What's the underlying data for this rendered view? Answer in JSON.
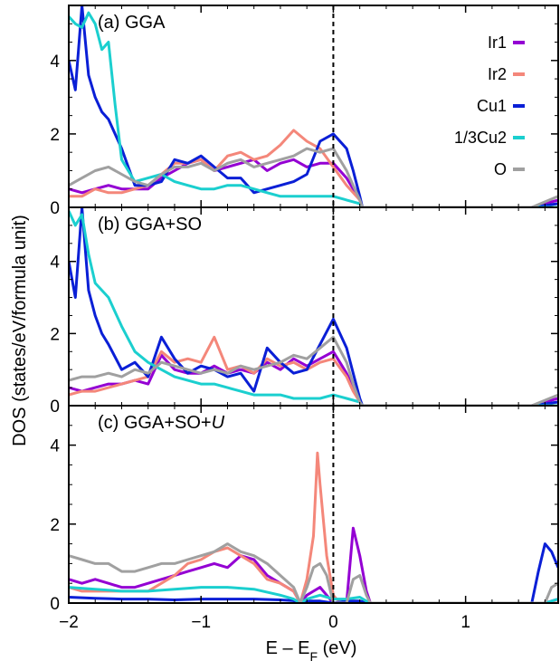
{
  "chart_data": {
    "type": "line",
    "xlabel": "E – E",
    "xlabel_sub": "F",
    "xlabel_unit": " (eV)",
    "ylabel": "DOS (states/eV/formula unit)",
    "xlim": [
      -2,
      1.7
    ],
    "x_ticks": [
      -2,
      -1,
      0,
      1
    ],
    "x_tick_labels": [
      "−2",
      "−1",
      "0",
      "1"
    ],
    "fermi_level_line": 0,
    "legend": {
      "placement": "top-right of panel (a)",
      "entries": [
        "Ir1",
        "Ir2",
        "Cu1",
        "1/3Cu2",
        "O"
      ]
    },
    "series_colors": {
      "Ir1": "#9400d3",
      "Ir2": "#f4877a",
      "Cu1": "#0a1fd6",
      "1/3Cu2": "#1bcfcf",
      "O": "#a0a0a0"
    },
    "panels": [
      {
        "label": "(a) GGA",
        "ylim": [
          0,
          5.5
        ],
        "y_ticks": [
          0,
          2,
          4
        ],
        "series": [
          {
            "name": "Ir1",
            "x": [
              -2,
              -1.9,
              -1.8,
              -1.7,
              -1.6,
              -1.5,
              -1.4,
              -1.3,
              -1.2,
              -1.1,
              -1.0,
              -0.9,
              -0.8,
              -0.7,
              -0.6,
              -0.5,
              -0.4,
              -0.3,
              -0.2,
              -0.1,
              0.0,
              0.1,
              0.15,
              0.2,
              0.22,
              1.5,
              1.7
            ],
            "y": [
              0.5,
              0.4,
              0.5,
              0.6,
              0.5,
              0.5,
              0.5,
              0.8,
              1.0,
              1.2,
              1.3,
              1.0,
              1.1,
              1.2,
              1.3,
              1.0,
              1.2,
              1.3,
              1.1,
              1.2,
              1.2,
              0.8,
              0.5,
              0.2,
              0.0,
              0.0,
              0.2
            ]
          },
          {
            "name": "Ir2",
            "x": [
              -2,
              -1.9,
              -1.8,
              -1.7,
              -1.6,
              -1.5,
              -1.4,
              -1.3,
              -1.2,
              -1.1,
              -1.0,
              -0.9,
              -0.8,
              -0.7,
              -0.6,
              -0.5,
              -0.4,
              -0.3,
              -0.2,
              -0.1,
              0.0,
              0.1,
              0.15,
              0.2,
              0.22,
              1.5,
              1.7
            ],
            "y": [
              0.3,
              0.3,
              0.5,
              0.4,
              0.4,
              0.5,
              0.6,
              0.9,
              1.2,
              1.2,
              1.3,
              1.0,
              1.4,
              1.5,
              1.3,
              1.4,
              1.7,
              2.1,
              1.8,
              1.6,
              1.1,
              0.6,
              0.4,
              0.2,
              0.0,
              0.0,
              0.1
            ]
          },
          {
            "name": "Cu1",
            "x": [
              -2,
              -1.95,
              -1.9,
              -1.85,
              -1.8,
              -1.75,
              -1.7,
              -1.6,
              -1.5,
              -1.4,
              -1.3,
              -1.2,
              -1.1,
              -1.0,
              -0.9,
              -0.8,
              -0.7,
              -0.6,
              -0.5,
              -0.4,
              -0.3,
              -0.2,
              -0.1,
              0.0,
              0.1,
              0.15,
              0.2,
              0.22,
              1.5,
              1.7
            ],
            "y": [
              4.0,
              3.2,
              5.5,
              3.6,
              3.0,
              2.6,
              2.4,
              1.6,
              0.6,
              0.6,
              0.7,
              1.3,
              1.2,
              1.4,
              1.1,
              0.8,
              0.8,
              0.4,
              0.5,
              0.6,
              0.7,
              0.9,
              1.8,
              2.0,
              1.6,
              1.0,
              0.3,
              0.0,
              0.0,
              0.1
            ]
          },
          {
            "name": "1/3Cu2",
            "x": [
              -2,
              -1.95,
              -1.9,
              -1.85,
              -1.8,
              -1.75,
              -1.7,
              -1.65,
              -1.6,
              -1.5,
              -1.4,
              -1.3,
              -1.2,
              -1.1,
              -1.0,
              -0.9,
              -0.8,
              -0.7,
              -0.6,
              -0.5,
              -0.4,
              -0.3,
              -0.2,
              -0.1,
              0.0,
              0.1,
              0.2,
              0.22,
              1.5,
              1.7
            ],
            "y": [
              5.2,
              5.0,
              4.9,
              5.3,
              5.0,
              4.3,
              4.5,
              2.8,
              1.3,
              0.7,
              0.8,
              0.9,
              0.7,
              0.6,
              0.5,
              0.5,
              0.6,
              0.6,
              0.5,
              0.4,
              0.3,
              0.3,
              0.3,
              0.3,
              0.3,
              0.2,
              0.1,
              0.0,
              0.0,
              0.0
            ]
          },
          {
            "name": "O",
            "x": [
              -2,
              -1.9,
              -1.8,
              -1.7,
              -1.6,
              -1.5,
              -1.4,
              -1.3,
              -1.2,
              -1.1,
              -1.0,
              -0.9,
              -0.8,
              -0.7,
              -0.6,
              -0.5,
              -0.4,
              -0.3,
              -0.2,
              -0.1,
              0.0,
              0.1,
              0.15,
              0.2,
              0.22,
              1.5,
              1.7
            ],
            "y": [
              0.6,
              0.8,
              1.0,
              1.1,
              0.9,
              0.7,
              0.6,
              0.9,
              1.1,
              1.1,
              1.2,
              1.0,
              1.2,
              1.3,
              1.1,
              1.2,
              1.3,
              1.4,
              1.6,
              1.5,
              1.6,
              1.0,
              0.6,
              0.2,
              0.0,
              0.0,
              0.3
            ]
          }
        ]
      },
      {
        "label": "(b) GGA+SO",
        "ylim": [
          0,
          5.5
        ],
        "y_ticks": [
          0,
          2,
          4
        ],
        "series": [
          {
            "name": "Ir1",
            "x": [
              -2,
              -1.9,
              -1.8,
              -1.7,
              -1.6,
              -1.5,
              -1.4,
              -1.3,
              -1.2,
              -1.1,
              -1.0,
              -0.9,
              -0.8,
              -0.7,
              -0.6,
              -0.5,
              -0.4,
              -0.3,
              -0.2,
              -0.1,
              0.0,
              0.1,
              0.15,
              0.2,
              0.22,
              1.5,
              1.7
            ],
            "y": [
              0.5,
              0.4,
              0.5,
              0.6,
              0.6,
              0.7,
              0.6,
              1.4,
              1.0,
              0.9,
              0.9,
              1.1,
              0.9,
              1.0,
              0.9,
              1.2,
              1.0,
              1.3,
              1.1,
              1.3,
              1.5,
              0.9,
              0.5,
              0.1,
              0.0,
              0.0,
              0.2
            ]
          },
          {
            "name": "Ir2",
            "x": [
              -2,
              -1.9,
              -1.8,
              -1.7,
              -1.6,
              -1.5,
              -1.4,
              -1.3,
              -1.2,
              -1.1,
              -1.0,
              -0.9,
              -0.8,
              -0.7,
              -0.6,
              -0.5,
              -0.4,
              -0.3,
              -0.2,
              -0.1,
              0.0,
              0.1,
              0.15,
              0.2,
              0.22,
              1.5,
              1.7
            ],
            "y": [
              0.3,
              0.4,
              0.4,
              0.5,
              0.6,
              0.7,
              0.8,
              1.5,
              1.2,
              1.3,
              1.2,
              1.9,
              1.0,
              1.1,
              0.9,
              1.3,
              1.1,
              1.2,
              1.0,
              1.2,
              1.3,
              0.8,
              0.4,
              0.1,
              0.0,
              0.0,
              0.1
            ]
          },
          {
            "name": "Cu1",
            "x": [
              -2,
              -1.95,
              -1.9,
              -1.85,
              -1.8,
              -1.75,
              -1.7,
              -1.6,
              -1.5,
              -1.4,
              -1.3,
              -1.2,
              -1.1,
              -1.0,
              -0.9,
              -0.8,
              -0.7,
              -0.6,
              -0.5,
              -0.4,
              -0.3,
              -0.2,
              -0.1,
              0.0,
              0.1,
              0.15,
              0.2,
              0.22,
              1.5,
              1.7
            ],
            "y": [
              4.0,
              3.0,
              5.5,
              3.2,
              2.5,
              2.0,
              1.7,
              1.0,
              1.2,
              0.8,
              1.9,
              1.3,
              0.9,
              1.1,
              1.0,
              0.8,
              0.9,
              0.4,
              1.6,
              1.2,
              0.9,
              1.0,
              1.7,
              2.4,
              1.6,
              0.9,
              0.2,
              0.0,
              0.0,
              0.1
            ]
          },
          {
            "name": "1/3Cu2",
            "x": [
              -2,
              -1.95,
              -1.9,
              -1.85,
              -1.8,
              -1.75,
              -1.7,
              -1.65,
              -1.6,
              -1.5,
              -1.4,
              -1.3,
              -1.2,
              -1.1,
              -1.0,
              -0.9,
              -0.8,
              -0.7,
              -0.6,
              -0.5,
              -0.4,
              -0.3,
              -0.2,
              -0.1,
              0.0,
              0.1,
              0.2,
              0.22,
              1.5,
              1.7
            ],
            "y": [
              5.4,
              5.0,
              5.3,
              4.2,
              3.4,
              3.2,
              3.0,
              2.6,
              2.2,
              1.5,
              1.2,
              1.0,
              0.8,
              0.7,
              0.6,
              0.6,
              0.5,
              0.4,
              0.3,
              0.3,
              0.3,
              0.2,
              0.2,
              0.2,
              0.3,
              0.2,
              0.1,
              0.0,
              0.0,
              0.0
            ]
          },
          {
            "name": "O",
            "x": [
              -2,
              -1.9,
              -1.8,
              -1.7,
              -1.6,
              -1.5,
              -1.4,
              -1.3,
              -1.2,
              -1.1,
              -1.0,
              -0.9,
              -0.8,
              -0.7,
              -0.6,
              -0.5,
              -0.4,
              -0.3,
              -0.2,
              -0.1,
              0.0,
              0.1,
              0.15,
              0.2,
              0.22,
              1.5,
              1.7
            ],
            "y": [
              0.7,
              0.8,
              0.8,
              0.9,
              0.8,
              1.0,
              0.9,
              1.2,
              1.1,
              1.0,
              0.9,
              1.0,
              0.9,
              1.1,
              1.0,
              1.1,
              1.2,
              1.4,
              1.3,
              1.6,
              1.9,
              1.2,
              0.6,
              0.1,
              0.0,
              0.0,
              0.3
            ]
          }
        ]
      },
      {
        "label": "(c) GGA+SO+",
        "label_italic": "U",
        "ylim": [
          0,
          5.0
        ],
        "y_ticks": [
          0,
          2,
          4
        ],
        "series": [
          {
            "name": "Ir1",
            "x": [
              -2,
              -1.9,
              -1.8,
              -1.7,
              -1.6,
              -1.5,
              -1.4,
              -1.3,
              -1.2,
              -1.1,
              -1.0,
              -0.9,
              -0.8,
              -0.7,
              -0.6,
              -0.5,
              -0.4,
              -0.3,
              -0.25,
              -0.2,
              -0.15,
              -0.1,
              -0.05,
              0.0,
              0.05,
              0.1,
              0.15,
              0.2,
              0.25,
              0.28,
              1.6,
              1.7
            ],
            "y": [
              0.6,
              0.5,
              0.6,
              0.5,
              0.4,
              0.4,
              0.5,
              0.6,
              0.7,
              0.8,
              0.9,
              1.0,
              0.9,
              1.2,
              1.1,
              0.7,
              0.5,
              0.3,
              0.0,
              0.2,
              0.3,
              0.4,
              0.2,
              0.0,
              0.0,
              0.0,
              1.9,
              1.2,
              0.3,
              0.0,
              0.0,
              0.1
            ]
          },
          {
            "name": "Ir2",
            "x": [
              -2,
              -1.9,
              -1.8,
              -1.7,
              -1.6,
              -1.5,
              -1.4,
              -1.3,
              -1.2,
              -1.1,
              -1.0,
              -0.9,
              -0.8,
              -0.7,
              -0.6,
              -0.5,
              -0.4,
              -0.3,
              -0.25,
              -0.2,
              -0.15,
              -0.12,
              -0.1,
              -0.05,
              0.0,
              0.05,
              0.1,
              1.6,
              1.7
            ],
            "y": [
              0.4,
              0.3,
              0.3,
              0.3,
              0.3,
              0.3,
              0.3,
              0.5,
              0.7,
              1.0,
              1.1,
              1.3,
              1.4,
              1.2,
              1.0,
              0.6,
              0.5,
              0.3,
              0.0,
              0.6,
              1.7,
              3.8,
              3.0,
              1.2,
              0.2,
              0.0,
              0.0,
              0.0,
              0.0
            ]
          },
          {
            "name": "Cu1",
            "x": [
              -2,
              -1.8,
              -1.6,
              -1.4,
              -1.2,
              -1.0,
              -0.8,
              -0.6,
              -0.4,
              -0.3,
              -0.25,
              -0.2,
              -0.1,
              0.0,
              0.1,
              0.2,
              0.25,
              0.28,
              1.5,
              1.55,
              1.6,
              1.65,
              1.7
            ],
            "y": [
              0.15,
              0.12,
              0.1,
              0.1,
              0.08,
              0.1,
              0.1,
              0.1,
              0.08,
              0.06,
              0.0,
              0.05,
              0.05,
              0.0,
              0.05,
              0.05,
              0.02,
              0.0,
              0.0,
              0.8,
              1.5,
              1.3,
              0.9
            ]
          },
          {
            "name": "1/3Cu2",
            "x": [
              -2,
              -1.8,
              -1.6,
              -1.4,
              -1.2,
              -1.0,
              -0.8,
              -0.6,
              -0.4,
              -0.3,
              -0.25,
              -0.2,
              -0.1,
              0.0,
              0.1,
              0.2,
              0.25,
              0.28,
              1.6,
              1.7
            ],
            "y": [
              0.4,
              0.35,
              0.3,
              0.3,
              0.35,
              0.4,
              0.4,
              0.35,
              0.2,
              0.1,
              0.0,
              0.1,
              0.2,
              0.1,
              0.1,
              0.15,
              0.05,
              0.0,
              0.0,
              0.1
            ]
          },
          {
            "name": "O",
            "x": [
              -2,
              -1.9,
              -1.8,
              -1.7,
              -1.6,
              -1.5,
              -1.4,
              -1.3,
              -1.2,
              -1.1,
              -1.0,
              -0.9,
              -0.8,
              -0.7,
              -0.6,
              -0.5,
              -0.4,
              -0.3,
              -0.25,
              -0.2,
              -0.15,
              -0.1,
              -0.05,
              0.0,
              0.05,
              0.1,
              0.15,
              0.2,
              0.25,
              0.28,
              1.6,
              1.65,
              1.7
            ],
            "y": [
              1.2,
              1.1,
              1.0,
              1.0,
              0.8,
              0.8,
              0.9,
              1.0,
              1.0,
              1.1,
              1.2,
              1.3,
              1.5,
              1.3,
              1.2,
              1.0,
              0.7,
              0.4,
              0.0,
              0.4,
              0.9,
              1.0,
              0.7,
              0.0,
              0.0,
              0.0,
              0.6,
              0.7,
              0.2,
              0.0,
              0.0,
              0.4,
              0.5
            ]
          }
        ]
      }
    ]
  }
}
